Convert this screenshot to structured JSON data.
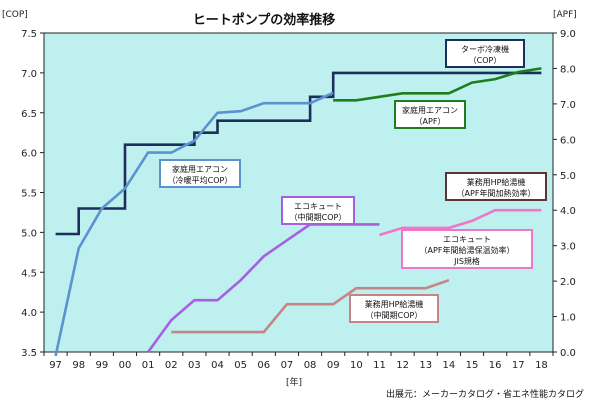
{
  "chart_data": {
    "type": "line",
    "title": "ヒートポンプの効率推移",
    "x_unit": "[年]",
    "y_left_unit": "[COP]",
    "y_right_unit": "[APF]",
    "source": "出展元：メーカーカタログ・省エネ性能カタログ",
    "x_ticks": [
      "97",
      "98",
      "99",
      "00",
      "01",
      "02",
      "03",
      "04",
      "05",
      "06",
      "07",
      "08",
      "09",
      "10",
      "11",
      "12",
      "13",
      "14",
      "15",
      "16",
      "17",
      "18"
    ],
    "ylim_left": [
      3.5,
      7.5
    ],
    "ylim_right": [
      0.0,
      9.0
    ],
    "left_ticks": [
      "3.5",
      "4.0",
      "4.5",
      "5.0",
      "5.5",
      "6.0",
      "6.5",
      "7.0",
      "7.5"
    ],
    "right_ticks": [
      "0.0",
      "1.0",
      "2.0",
      "3.0",
      "4.0",
      "5.0",
      "6.0",
      "7.0",
      "8.0",
      "9.0"
    ],
    "grid": false,
    "series": [
      {
        "name": "ターボ冷凍機（COP）",
        "axis": "left",
        "color": "#1c2e5a",
        "step": true,
        "x": [
          "97",
          "98",
          "99",
          "00",
          "01",
          "02",
          "03",
          "04",
          "05",
          "06",
          "07",
          "08",
          "09",
          "10",
          "11",
          "12",
          "13",
          "14",
          "15",
          "16",
          "17",
          "18"
        ],
        "y": [
          4.98,
          5.3,
          5.3,
          6.1,
          6.1,
          6.1,
          6.25,
          6.4,
          6.4,
          6.4,
          6.4,
          6.7,
          7.0,
          7.0,
          7.0,
          7.0,
          7.0,
          7.0,
          7.0,
          7.0,
          7.0,
          7.0
        ]
      },
      {
        "name": "家庭用エアコン（冷暖平均COP）",
        "axis": "left",
        "color": "#5b93d0",
        "step": false,
        "x": [
          "97",
          "98",
          "99",
          "00",
          "01",
          "02",
          "03",
          "04",
          "05",
          "06",
          "07",
          "08",
          "09"
        ],
        "y": [
          3.45,
          4.8,
          5.3,
          5.55,
          6.0,
          6.0,
          6.15,
          6.5,
          6.52,
          6.62,
          6.62,
          6.62,
          6.75
        ]
      },
      {
        "name": "家庭用エアコン（APF）",
        "axis": "right",
        "color": "#1e7e1e",
        "step": false,
        "x": [
          "09",
          "10",
          "11",
          "12",
          "13",
          "14",
          "15",
          "16",
          "17",
          "18"
        ],
        "y": [
          7.1,
          7.1,
          7.2,
          7.3,
          7.3,
          7.3,
          7.6,
          7.7,
          7.9,
          8.0
        ]
      },
      {
        "name": "エコキュート（中間期COP）",
        "axis": "left",
        "color": "#a560e0",
        "step": false,
        "x": [
          "01",
          "02",
          "03",
          "04",
          "05",
          "06",
          "07",
          "08",
          "09",
          "10",
          "11"
        ],
        "y": [
          3.5,
          3.9,
          4.15,
          4.15,
          4.4,
          4.7,
          4.9,
          5.1,
          5.1,
          5.1,
          5.1
        ]
      },
      {
        "name": "エコキュート（APF年間給湯保温効率）JIS規格",
        "axis": "right",
        "color": "#f077c8",
        "step": false,
        "x": [
          "11",
          "12",
          "13",
          "14",
          "15",
          "16",
          "17",
          "18"
        ],
        "y": [
          3.3,
          3.5,
          3.5,
          3.5,
          3.7,
          4.0,
          4.0,
          4.0
        ]
      },
      {
        "name": "業務用HP給湯機（中間期COP）",
        "axis": "left",
        "color": "#c48585",
        "step": false,
        "x": [
          "02",
          "03",
          "04",
          "05",
          "06",
          "07",
          "08",
          "09",
          "10",
          "11",
          "12",
          "13",
          "14"
        ],
        "y": [
          3.75,
          3.75,
          3.75,
          3.75,
          3.75,
          4.1,
          4.1,
          4.1,
          4.3,
          4.3,
          4.3,
          4.3,
          4.4
        ]
      },
      {
        "name": "業務用HP給湯機（APF年間加熱効率）",
        "axis": "right",
        "color": "#5a3535",
        "step": false,
        "x": [
          "15",
          "16",
          "17",
          "18"
        ],
        "y": [
          4.3,
          4.3,
          4.3,
          4.3
        ]
      }
    ],
    "annotations": [
      {
        "lines": [
          "ターボ冷凍機",
          "（COP）"
        ],
        "series": 0,
        "border": "#1c2e5a"
      },
      {
        "lines": [
          "家庭用エアコン",
          "（冷暖平均COP）"
        ],
        "series": 1,
        "border": "#5b93d0"
      },
      {
        "lines": [
          "家庭用エアコン",
          "（APF）"
        ],
        "series": 2,
        "border": "#1e7e1e"
      },
      {
        "lines": [
          "エコキュート",
          "（中間期COP）"
        ],
        "series": 3,
        "border": "#a560e0"
      },
      {
        "lines": [
          "エコキュート",
          "（APF年間給湯保温効率）",
          "JIS規格"
        ],
        "series": 4,
        "border": "#f077c8"
      },
      {
        "lines": [
          "業務用HP給湯機",
          "（中間期COP）"
        ],
        "series": 5,
        "border": "#c48585"
      },
      {
        "lines": [
          "業務用HP給湯機",
          "（APF年間加熱効率）"
        ],
        "series": 6,
        "border": "#5a3535"
      }
    ]
  }
}
